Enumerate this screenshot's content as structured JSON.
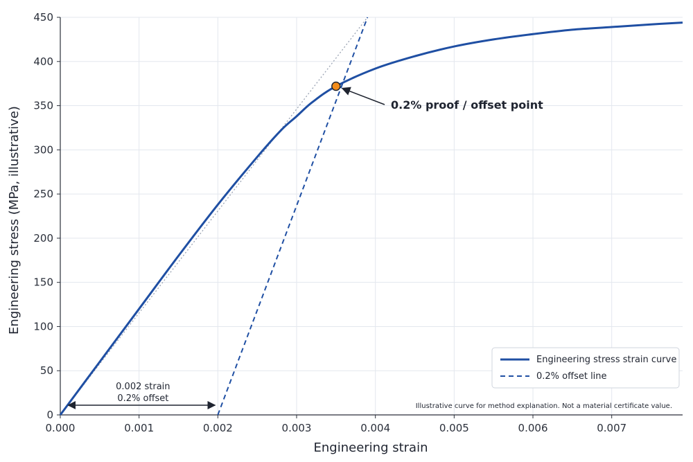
{
  "chart_data": {
    "type": "line",
    "xlabel": "Engineering strain",
    "ylabel": "Engineering stress (MPa, illustrative)",
    "xlim": [
      0,
      0.0079
    ],
    "ylim": [
      0,
      450
    ],
    "x_ticks": [
      "0.000",
      "0.001",
      "0.002",
      "0.003",
      "0.004",
      "0.005",
      "0.006",
      "0.007"
    ],
    "y_ticks": [
      "0",
      "50",
      "100",
      "150",
      "200",
      "250",
      "300",
      "350",
      "400",
      "450"
    ],
    "grid": true,
    "legend_position": "lower-right",
    "series": [
      {
        "name": "Engineering stress strain curve",
        "style": "solid",
        "color": "#1f4fa3",
        "x": [
          0,
          0.0005,
          0.001,
          0.0015,
          0.002,
          0.0025,
          0.0028,
          0.003,
          0.0032,
          0.0035,
          0.004,
          0.0045,
          0.005,
          0.0055,
          0.006,
          0.0065,
          0.007,
          0.0075,
          0.0079
        ],
        "y": [
          0,
          60,
          120,
          180,
          238,
          292,
          322,
          338,
          354,
          372,
          392,
          406,
          417,
          425,
          431,
          436,
          439,
          442,
          444
        ]
      },
      {
        "name": "0.2% offset line",
        "style": "dashed",
        "color": "#1f4fa3",
        "x": [
          0.002,
          0.0039
        ],
        "y": [
          0,
          450
        ]
      },
      {
        "name": "",
        "style": "dotted",
        "color": "#9aa3b3",
        "x": [
          0,
          0.0039
        ],
        "y": [
          0,
          450
        ]
      }
    ],
    "annotations": [
      {
        "text": "0.2% proof / offset point",
        "x": 0.0035,
        "y": 372,
        "marker_color": "#f28c1b"
      },
      {
        "text_line1": "0.002 strain",
        "text_line2": "0.2% offset",
        "from_x": 0.0001,
        "to_x": 0.002,
        "y": 11
      }
    ],
    "note": "Illustrative curve for method explanation. Not a material certificate value."
  }
}
